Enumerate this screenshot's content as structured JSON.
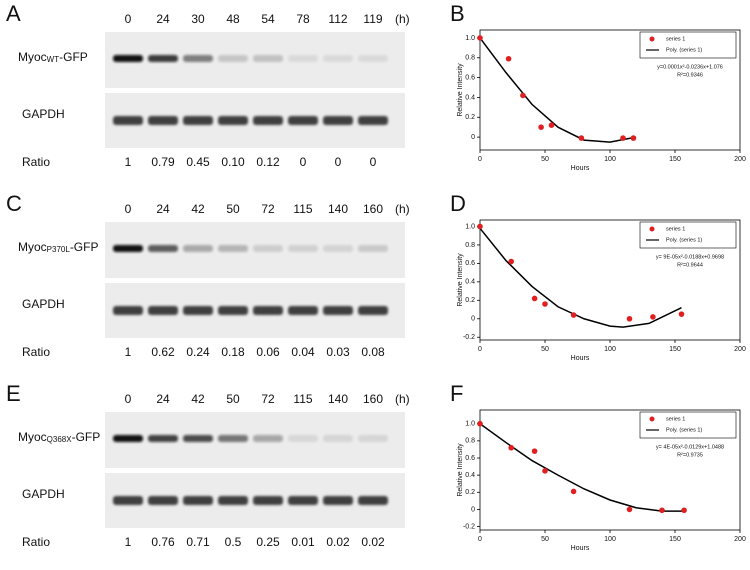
{
  "blots": [
    {
      "letter": "A",
      "hours": [
        "0",
        "24",
        "30",
        "48",
        "54",
        "78",
        "112",
        "119"
      ],
      "unit": "(h)",
      "protein": {
        "base": "Myoc",
        "sub": "WT",
        "suffix": "-GFP"
      },
      "control": "GAPDH",
      "ratio_label": "Ratio",
      "ratios": [
        "1",
        "0.79",
        "0.45",
        "0.10",
        "0.12",
        "0",
        "0",
        "0"
      ]
    },
    {
      "letter": "C",
      "hours": [
        "0",
        "24",
        "42",
        "50",
        "72",
        "115",
        "140",
        "160"
      ],
      "unit": "(h)",
      "protein": {
        "base": "Myoc",
        "sub": "P370L",
        "suffix": "-GFP"
      },
      "control": "GAPDH",
      "ratio_label": "Ratio",
      "ratios": [
        "1",
        "0.62",
        "0.24",
        "0.18",
        "0.06",
        "0.04",
        "0.03",
        "0.08"
      ]
    },
    {
      "letter": "E",
      "hours": [
        "0",
        "24",
        "42",
        "50",
        "72",
        "115",
        "140",
        "160"
      ],
      "unit": "(h)",
      "protein": {
        "base": "Myoc",
        "sub": "Q368X",
        "suffix": "-GFP"
      },
      "control": "GAPDH",
      "ratio_label": "Ratio",
      "ratios": [
        "1",
        "0.76",
        "0.71",
        "0.5",
        "0.25",
        "0.01",
        "0.02",
        "0.02"
      ]
    }
  ],
  "chart_data": [
    {
      "type": "scatter",
      "letter": "B",
      "x_label": "Hours",
      "y_label": "Relative Intensity",
      "xlim": [
        0,
        200
      ],
      "xticks": [
        0,
        50,
        100,
        150,
        200
      ],
      "ylim": [
        -0.13,
        1.08
      ],
      "yticks": [
        0,
        0.2,
        0.4,
        0.6,
        0.8,
        {
          "value": 1,
          "label": "1.0"
        }
      ],
      "series": [
        {
          "name": "series 1",
          "color": "#e02020",
          "x": [
            0,
            22,
            33,
            47,
            55,
            78,
            110,
            118
          ],
          "values": [
            1.0,
            0.79,
            0.42,
            0.1,
            0.12,
            -0.01,
            -0.01,
            -0.01
          ]
        },
        {
          "name": "Poly. (series 1)",
          "color": "#000000",
          "x": [
            0,
            20,
            40,
            60,
            80,
            100,
            120
          ],
          "values": [
            1.0,
            0.65,
            0.33,
            0.1,
            -0.03,
            -0.05,
            0.0
          ]
        }
      ],
      "equation": "y=0.0001x²-0.0236x+1.076",
      "r_squared": "R²=0.9346"
    },
    {
      "type": "scatter",
      "letter": "D",
      "x_label": "Hours",
      "y_label": "Relative Intensity",
      "xlim": [
        0,
        200
      ],
      "xticks": [
        0,
        50,
        100,
        150,
        200
      ],
      "ylim": [
        -0.23,
        1.07
      ],
      "yticks": [
        -0.2,
        0,
        0.2,
        0.4,
        0.6,
        0.8,
        {
          "value": 1,
          "label": "1.0"
        }
      ],
      "series": [
        {
          "name": "series 1",
          "color": "#e02020",
          "x": [
            0,
            24,
            42,
            50,
            72,
            115,
            133,
            155
          ],
          "values": [
            1.0,
            0.62,
            0.22,
            0.16,
            0.04,
            0.0,
            0.02,
            0.05
          ]
        },
        {
          "name": "Poly. (series 1)",
          "color": "#000000",
          "x": [
            0,
            20,
            40,
            60,
            80,
            100,
            110,
            130,
            155
          ],
          "values": [
            0.98,
            0.63,
            0.35,
            0.13,
            0.0,
            -0.08,
            -0.09,
            -0.05,
            0.12
          ]
        }
      ],
      "equation": "y= 9E-05x²-0.0188x+0.9698",
      "r_squared": "R²=0.9644"
    },
    {
      "type": "scatter",
      "letter": "F",
      "x_label": "Hours",
      "y_label": "Relative Intensity",
      "xlim": [
        0,
        200
      ],
      "xticks": [
        0,
        50,
        100,
        150,
        200
      ],
      "ylim": [
        -0.24,
        1.16
      ],
      "yticks": [
        -0.2,
        0,
        0.2,
        0.4,
        0.6,
        0.8,
        {
          "value": 1,
          "label": "1.0"
        }
      ],
      "series": [
        {
          "name": "series 1",
          "color": "#e02020",
          "x": [
            0,
            24,
            42,
            50,
            72,
            115,
            140,
            157
          ],
          "values": [
            1.0,
            0.72,
            0.68,
            0.45,
            0.21,
            0.0,
            -0.01,
            -0.01
          ]
        },
        {
          "name": "Poly. (series 1)",
          "color": "#000000",
          "x": [
            0,
            20,
            40,
            60,
            80,
            100,
            120,
            140,
            157
          ],
          "values": [
            1.0,
            0.78,
            0.57,
            0.4,
            0.24,
            0.11,
            0.02,
            -0.02,
            -0.02
          ]
        }
      ],
      "equation": "y= 4E-05x²-0.0129x+1.0488",
      "r_squared": "R²=0.9735"
    }
  ]
}
